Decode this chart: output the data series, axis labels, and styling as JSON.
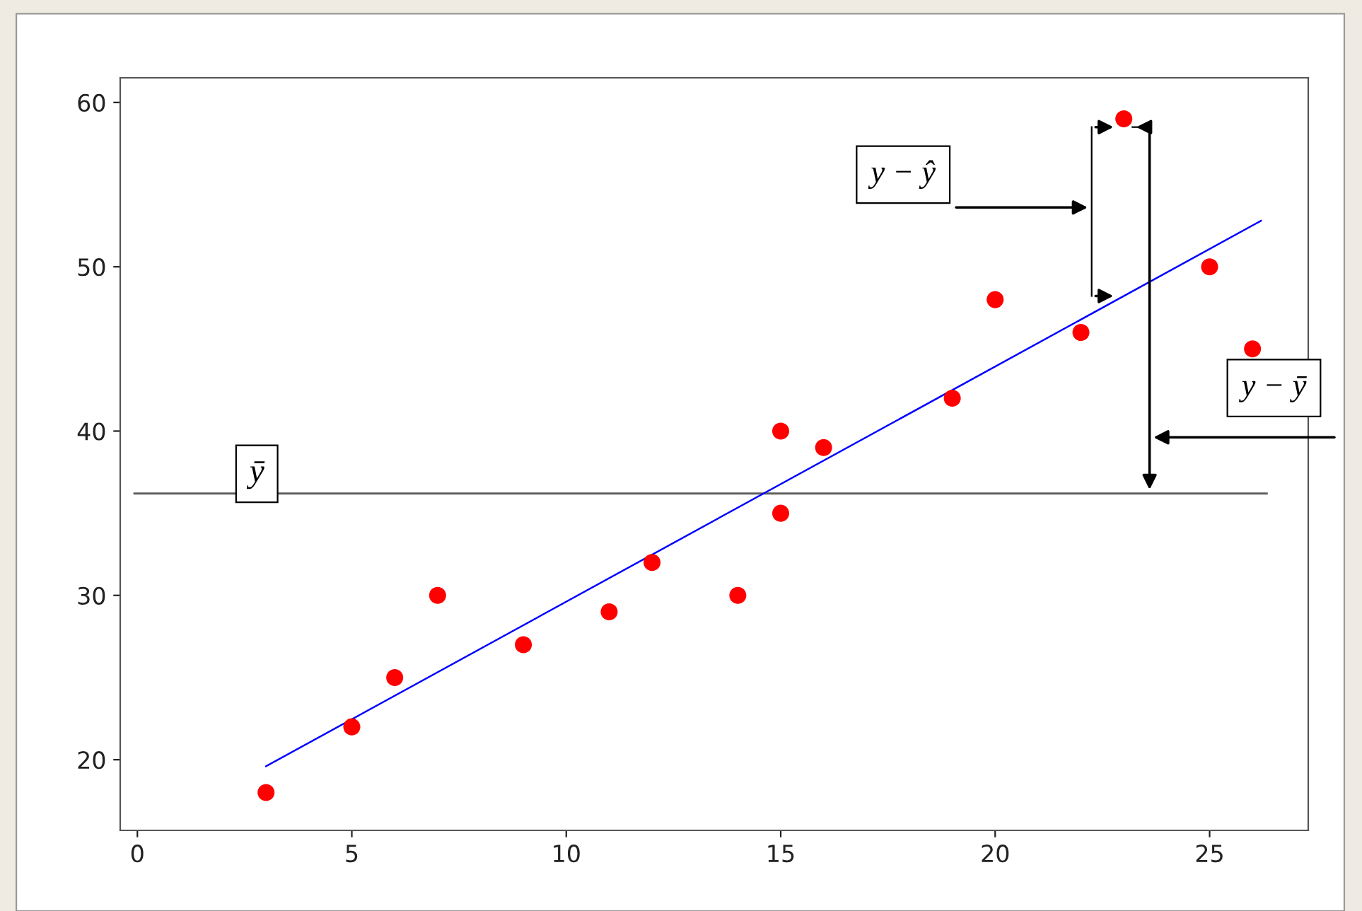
{
  "chart_data": {
    "type": "scatter",
    "series": [
      {
        "color": "#ff0000",
        "marker": "circle",
        "x": [
          3,
          5,
          6,
          7,
          9,
          11,
          12,
          14,
          15,
          15,
          16,
          19,
          20,
          22,
          23,
          25,
          26
        ],
        "values": [
          18,
          22,
          25,
          30,
          27,
          29,
          32,
          30,
          40,
          35,
          39,
          42,
          48,
          46,
          59,
          50,
          45
        ]
      },
      {
        "type": "line",
        "color": "#0000ff",
        "marker": "none",
        "line_style": "solid",
        "x": [
          3,
          26.2
        ],
        "values": [
          19.6,
          52.8
        ]
      }
    ],
    "xlim": [
      -0.4,
      27.3
    ],
    "ylim": [
      15.7,
      61.5
    ],
    "xticks": [
      0,
      5,
      10,
      15,
      20,
      25
    ],
    "yticks": [
      20,
      30,
      40,
      50,
      60
    ],
    "grid": false,
    "ref_lines": [
      {
        "axis": "y",
        "value": 36.2,
        "label": "ȳ",
        "color": "#606060"
      }
    ],
    "annotations": [
      "y − ŷ",
      "y − ȳ"
    ]
  }
}
